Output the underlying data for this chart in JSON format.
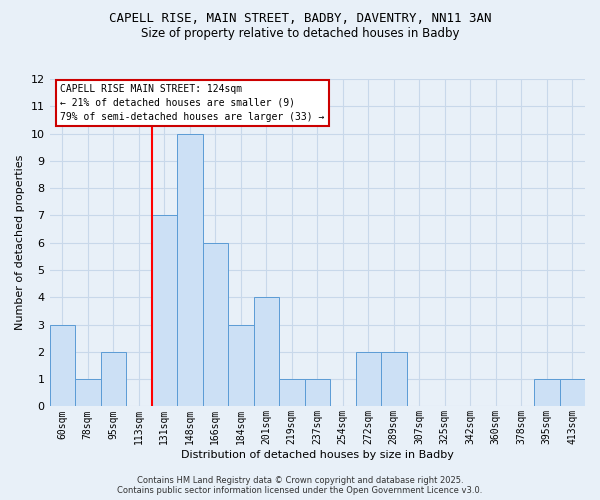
{
  "title_line1": "CAPELL RISE, MAIN STREET, BADBY, DAVENTRY, NN11 3AN",
  "title_line2": "Size of property relative to detached houses in Badby",
  "xlabel": "Distribution of detached houses by size in Badby",
  "ylabel": "Number of detached properties",
  "categories": [
    "60sqm",
    "78sqm",
    "95sqm",
    "113sqm",
    "131sqm",
    "148sqm",
    "166sqm",
    "184sqm",
    "201sqm",
    "219sqm",
    "237sqm",
    "254sqm",
    "272sqm",
    "289sqm",
    "307sqm",
    "325sqm",
    "342sqm",
    "360sqm",
    "378sqm",
    "395sqm",
    "413sqm"
  ],
  "values": [
    3,
    1,
    2,
    0,
    7,
    10,
    6,
    3,
    4,
    1,
    1,
    0,
    2,
    2,
    0,
    0,
    0,
    0,
    0,
    1,
    1
  ],
  "bar_color": "#cce0f5",
  "bar_edge_color": "#5b9bd5",
  "red_line_index": 4,
  "ylim": [
    0,
    12
  ],
  "yticks": [
    0,
    1,
    2,
    3,
    4,
    5,
    6,
    7,
    8,
    9,
    10,
    11,
    12
  ],
  "annotation_title": "CAPELL RISE MAIN STREET: 124sqm",
  "annotation_line1": "← 21% of detached houses are smaller (9)",
  "annotation_line2": "79% of semi-detached houses are larger (33) →",
  "annotation_box_color": "#ffffff",
  "annotation_box_edge": "#cc0000",
  "grid_color": "#c8d8ea",
  "background_color": "#e8f0f8",
  "footer_line1": "Contains HM Land Registry data © Crown copyright and database right 2025.",
  "footer_line2": "Contains public sector information licensed under the Open Government Licence v3.0."
}
